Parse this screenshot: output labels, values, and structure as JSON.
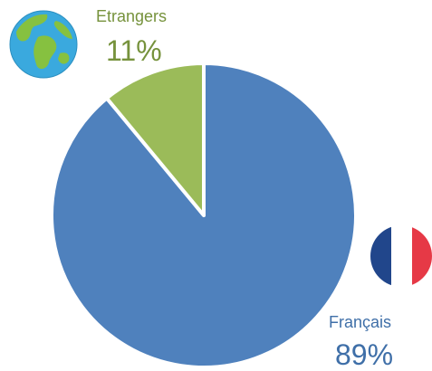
{
  "chart_data": {
    "type": "pie",
    "slices": [
      {
        "label": "Français",
        "value": 89,
        "value_label": "89%",
        "color": "#4f81bd"
      },
      {
        "label": "Etrangers",
        "value": 11,
        "value_label": "11%",
        "color": "#9bbb59"
      }
    ],
    "legend": "none",
    "label_text_colors": {
      "Français": "#3f6fa8",
      "Etrangers": "#76923c"
    }
  },
  "icons": {
    "etrangers": "globe-icon",
    "francais": "france-flag-icon"
  },
  "colors": {
    "flag_blue": "#21468b",
    "flag_white": "#ffffff",
    "flag_red": "#e63946",
    "globe_ocean": "#3aa9de",
    "globe_land": "#86c140"
  }
}
